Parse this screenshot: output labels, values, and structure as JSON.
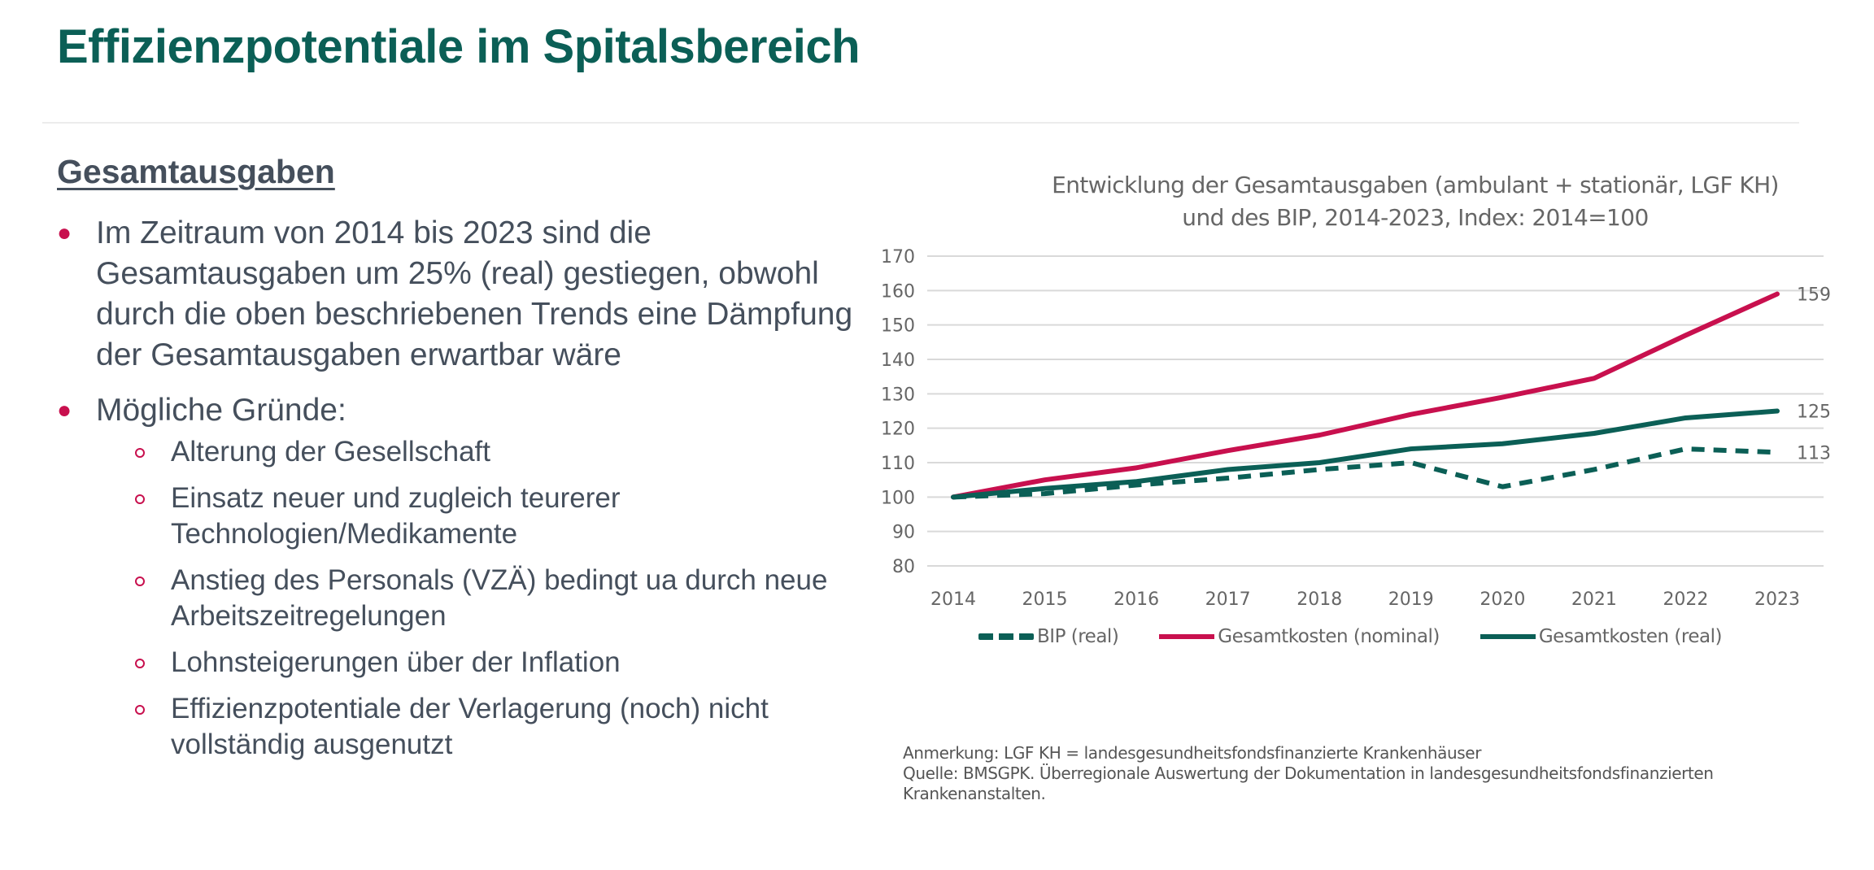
{
  "page": {
    "title": "Effizienzpotentiale im Spitalsbereich",
    "section_heading": "Gesamtausgaben",
    "bullets": [
      {
        "text": "Im Zeitraum von 2014 bis 2023 sind die Gesamtausgaben um 25% (real) gestiegen, obwohl durch die oben beschriebenen Trends eine Dämpfung der Gesamtausgaben erwartbar wäre"
      },
      {
        "text": "Mögliche Gründe:",
        "sub": [
          "Alterung der Gesellschaft",
          "Einsatz neuer und zugleich teurerer Technologien/Medikamente",
          "Anstieg des Personals (VZÄ) bedingt ua durch neue Arbeitszeitregelungen",
          "Lohnsteigerungen über der Inflation",
          "Effizienzpotentiale der Verlagerung (noch) nicht vollständig ausgenutzt"
        ]
      }
    ],
    "footnote": {
      "note": "Anmerkung: LGF KH = landesgesundheitsfondsfinanzierte Krankenhäuser",
      "source": "Quelle: BMSGPK. Überregionale Auswertung der Dokumentation in landesgesundheitsfondsfinanzierten Krankenanstalten."
    },
    "colors": {
      "brand_green": "#0b5f56",
      "accent_red": "#c8104e",
      "text_gray": "#454f5c"
    }
  },
  "chart_data": {
    "type": "line",
    "title": "Entwicklung der Gesamtausgaben (ambulant + stationär, LGF KH)",
    "subtitle": "und  des BIP, 2014-2023, Index: 2014=100",
    "xlabel": "",
    "ylabel": "",
    "x": [
      "2014",
      "2015",
      "2016",
      "2017",
      "2018",
      "2019",
      "2020",
      "2021",
      "2022",
      "2023"
    ],
    "ylim": [
      80,
      170
    ],
    "yticks": [
      170,
      160,
      150,
      140,
      130,
      120,
      110,
      100,
      90,
      80
    ],
    "grid": true,
    "legend_position": "bottom",
    "series": [
      {
        "name": "BIP (real)",
        "style": "dashed",
        "color": "#0b5f56",
        "values": [
          100,
          101,
          103.5,
          105.5,
          108,
          110,
          103,
          108,
          114,
          113
        ],
        "end_label": "113"
      },
      {
        "name": "Gesamtkosten (nominal)",
        "style": "solid",
        "color": "#c8104e",
        "values": [
          100,
          105,
          108.5,
          113.5,
          118,
          124,
          129,
          134.5,
          147,
          159
        ],
        "end_label": "159"
      },
      {
        "name": "Gesamtkosten (real)",
        "style": "solid",
        "color": "#0b5f56",
        "values": [
          100,
          102.5,
          104.5,
          108,
          110,
          114,
          115.5,
          118.5,
          123,
          125
        ],
        "end_label": "125"
      }
    ]
  }
}
